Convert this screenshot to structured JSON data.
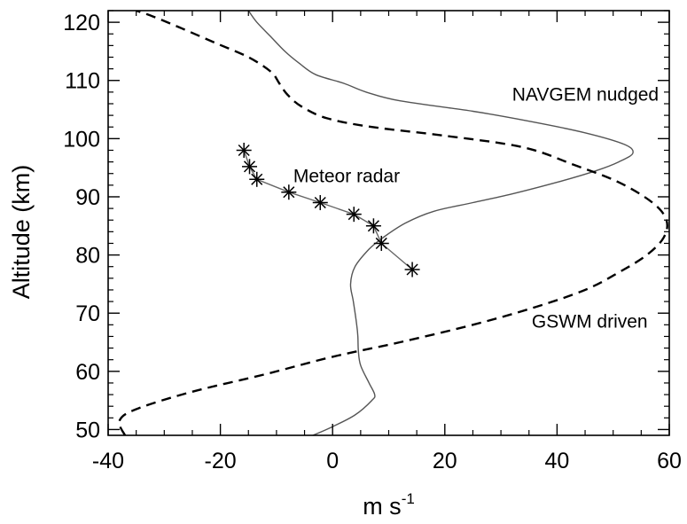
{
  "chart_data": {
    "type": "line",
    "title": "",
    "xlabel": "m s",
    "xlabel_superscript": "-1",
    "ylabel": "Altitude (km)",
    "xlim": [
      -40,
      60
    ],
    "ylim": [
      49,
      122
    ],
    "x_ticks": [
      -40,
      -20,
      0,
      20,
      40,
      60
    ],
    "y_ticks": [
      50,
      60,
      70,
      80,
      90,
      100,
      110,
      120
    ],
    "x_tick_labels": [
      "-40",
      "-20",
      "0",
      "20",
      "40",
      "60"
    ],
    "y_tick_labels": [
      "50",
      "60",
      "70",
      "80",
      "90",
      "100",
      "110",
      "120"
    ],
    "grid": false,
    "series": [
      {
        "name": "NAVGEM nudged",
        "style": "solid-thin",
        "color": "#555555",
        "points": [
          [
            -3.5,
            49
          ],
          [
            0,
            50.5
          ],
          [
            4,
            52.5
          ],
          [
            7,
            55
          ],
          [
            7.5,
            56
          ],
          [
            6.5,
            58
          ],
          [
            5,
            61
          ],
          [
            4.6,
            63.5
          ],
          [
            4.5,
            66
          ],
          [
            4.3,
            68
          ],
          [
            3.7,
            72
          ],
          [
            3.2,
            75
          ],
          [
            4,
            78
          ],
          [
            6.5,
            81
          ],
          [
            9,
            83
          ],
          [
            13,
            85.5
          ],
          [
            18,
            87.5
          ],
          [
            25,
            89
          ],
          [
            32,
            90.5
          ],
          [
            40,
            92.5
          ],
          [
            47,
            94.5
          ],
          [
            51,
            96
          ],
          [
            53.5,
            97.5
          ],
          [
            52,
            99
          ],
          [
            45,
            101
          ],
          [
            35,
            103
          ],
          [
            25,
            104.7
          ],
          [
            12,
            106.5
          ],
          [
            6,
            108
          ],
          [
            2,
            109.5
          ],
          [
            -3,
            111
          ],
          [
            -6,
            113
          ],
          [
            -8.5,
            115
          ],
          [
            -11,
            117.5
          ],
          [
            -13.5,
            120
          ],
          [
            -15,
            122
          ]
        ]
      },
      {
        "name": "GSWM driven",
        "style": "dashed",
        "color": "#000000",
        "points": [
          [
            -37,
            49
          ],
          [
            -38,
            51.5
          ],
          [
            -35,
            53.5
          ],
          [
            -25,
            56.5
          ],
          [
            -12,
            59.5
          ],
          [
            0,
            62.5
          ],
          [
            12,
            65
          ],
          [
            25,
            68
          ],
          [
            36,
            71
          ],
          [
            45,
            74
          ],
          [
            51,
            77
          ],
          [
            56,
            80
          ],
          [
            59,
            83
          ],
          [
            59.5,
            86
          ],
          [
            57,
            89
          ],
          [
            51,
            92.5
          ],
          [
            43,
            95.5
          ],
          [
            34,
            98.5
          ],
          [
            20,
            100.5
          ],
          [
            7,
            102
          ],
          [
            -1,
            103.5
          ],
          [
            -5.5,
            105.5
          ],
          [
            -8,
            107.5
          ],
          [
            -9.5,
            109.5
          ],
          [
            -11,
            111.5
          ],
          [
            -15,
            114
          ],
          [
            -21,
            116.5
          ],
          [
            -27,
            119
          ],
          [
            -32,
            121
          ],
          [
            -35,
            122
          ]
        ]
      },
      {
        "name": "Meteor radar",
        "style": "solid-star",
        "color": "#666666",
        "points": [
          [
            -15.8,
            98
          ],
          [
            -14.8,
            95.2
          ],
          [
            -13.5,
            93
          ],
          [
            -7.8,
            90.8
          ],
          [
            -2.2,
            89
          ],
          [
            3.8,
            87
          ],
          [
            7.3,
            85
          ],
          [
            8.7,
            82
          ],
          [
            14.2,
            77.5
          ]
        ]
      }
    ],
    "annotations": [
      {
        "text": "NAVGEM nudged",
        "x": 32,
        "y": 106.5
      },
      {
        "text": "Meteor radar",
        "x": -7,
        "y": 92.5
      },
      {
        "text": "GSWM driven",
        "x": 35.5,
        "y": 67.5
      }
    ]
  }
}
